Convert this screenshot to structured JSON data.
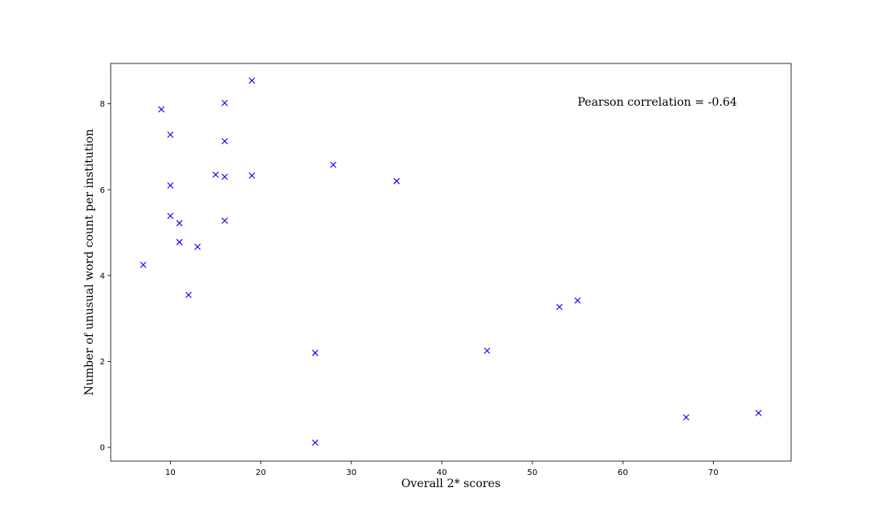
{
  "chart_data": {
    "type": "scatter",
    "title": "",
    "xlabel": "Overall 2* scores",
    "ylabel": "Number of unusual word count per institution",
    "xlim": [
      3.4,
      78.6
    ],
    "ylim": [
      -0.32,
      8.94
    ],
    "xticks": [
      10,
      20,
      30,
      40,
      50,
      60,
      70
    ],
    "yticks": [
      0,
      2,
      4,
      6,
      8
    ],
    "grid": false,
    "legend": "none",
    "marker": "x",
    "marker_color": "#0000ff",
    "annotation": "Pearson correlation = -0.64",
    "annotation_position": {
      "x": 55,
      "y": 8.05
    },
    "points": [
      {
        "x": 7,
        "y": 4.25
      },
      {
        "x": 9,
        "y": 7.87
      },
      {
        "x": 10,
        "y": 7.28
      },
      {
        "x": 10,
        "y": 6.1
      },
      {
        "x": 10,
        "y": 5.39
      },
      {
        "x": 11,
        "y": 5.22
      },
      {
        "x": 11,
        "y": 4.78
      },
      {
        "x": 12,
        "y": 3.55
      },
      {
        "x": 13,
        "y": 4.67
      },
      {
        "x": 15,
        "y": 6.35
      },
      {
        "x": 16,
        "y": 8.02
      },
      {
        "x": 16,
        "y": 7.13
      },
      {
        "x": 16,
        "y": 6.3
      },
      {
        "x": 16,
        "y": 5.28
      },
      {
        "x": 19,
        "y": 8.54
      },
      {
        "x": 19,
        "y": 6.33
      },
      {
        "x": 26,
        "y": 2.2
      },
      {
        "x": 26,
        "y": 0.11
      },
      {
        "x": 28,
        "y": 6.58
      },
      {
        "x": 35,
        "y": 6.2
      },
      {
        "x": 45,
        "y": 2.25
      },
      {
        "x": 53,
        "y": 3.27
      },
      {
        "x": 55,
        "y": 3.42
      },
      {
        "x": 67,
        "y": 0.7
      },
      {
        "x": 75,
        "y": 0.8
      }
    ]
  }
}
